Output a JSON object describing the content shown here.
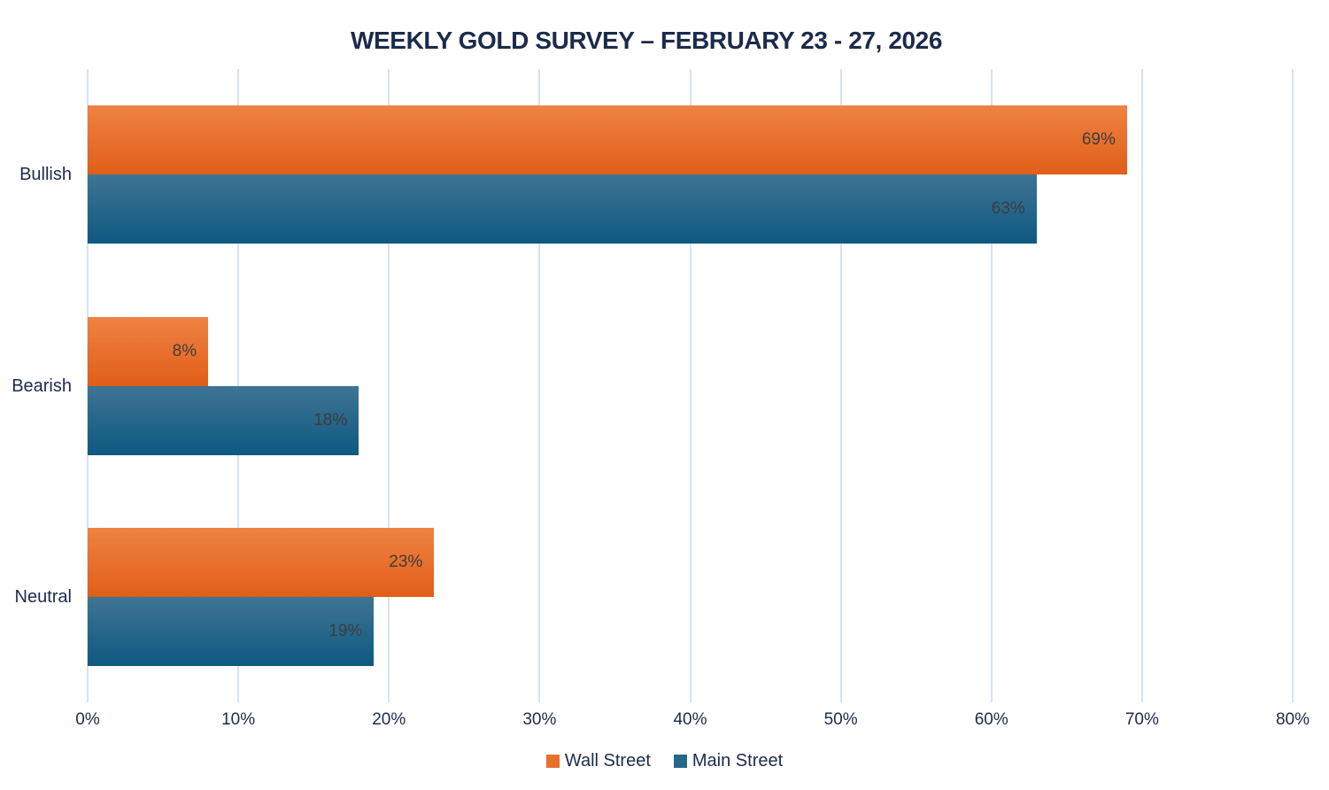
{
  "chart_data": {
    "type": "bar",
    "orientation": "horizontal",
    "title": "WEEKLY GOLD SURVEY – FEBRUARY 23 - 27, 2026",
    "categories": [
      "Bullish",
      "Bearish",
      "Neutral"
    ],
    "series": [
      {
        "name": "Wall Street",
        "values": [
          69,
          8,
          23
        ],
        "gradient_top": "#EF8243",
        "gradient_bottom": "#E05E18",
        "legend_color": "#E8702D"
      },
      {
        "name": "Main Street",
        "values": [
          63,
          18,
          19
        ],
        "gradient_top": "#3E7494",
        "gradient_bottom": "#0E5980",
        "legend_color": "#266787"
      }
    ],
    "value_suffix": "%",
    "x_ticks": [
      "0%",
      "10%",
      "20%",
      "30%",
      "40%",
      "50%",
      "60%",
      "70%",
      "80%"
    ],
    "xlim": [
      0,
      80
    ],
    "grid": true,
    "legend_position": "bottom",
    "colors": {
      "title_text": "#1B2B4B",
      "axis_text": "#1B2B4B",
      "category_text": "#1B2B4B",
      "data_label_text": "#3D3D3D",
      "gridline": "#D5E3F0",
      "background": "#FFFFFF"
    }
  }
}
